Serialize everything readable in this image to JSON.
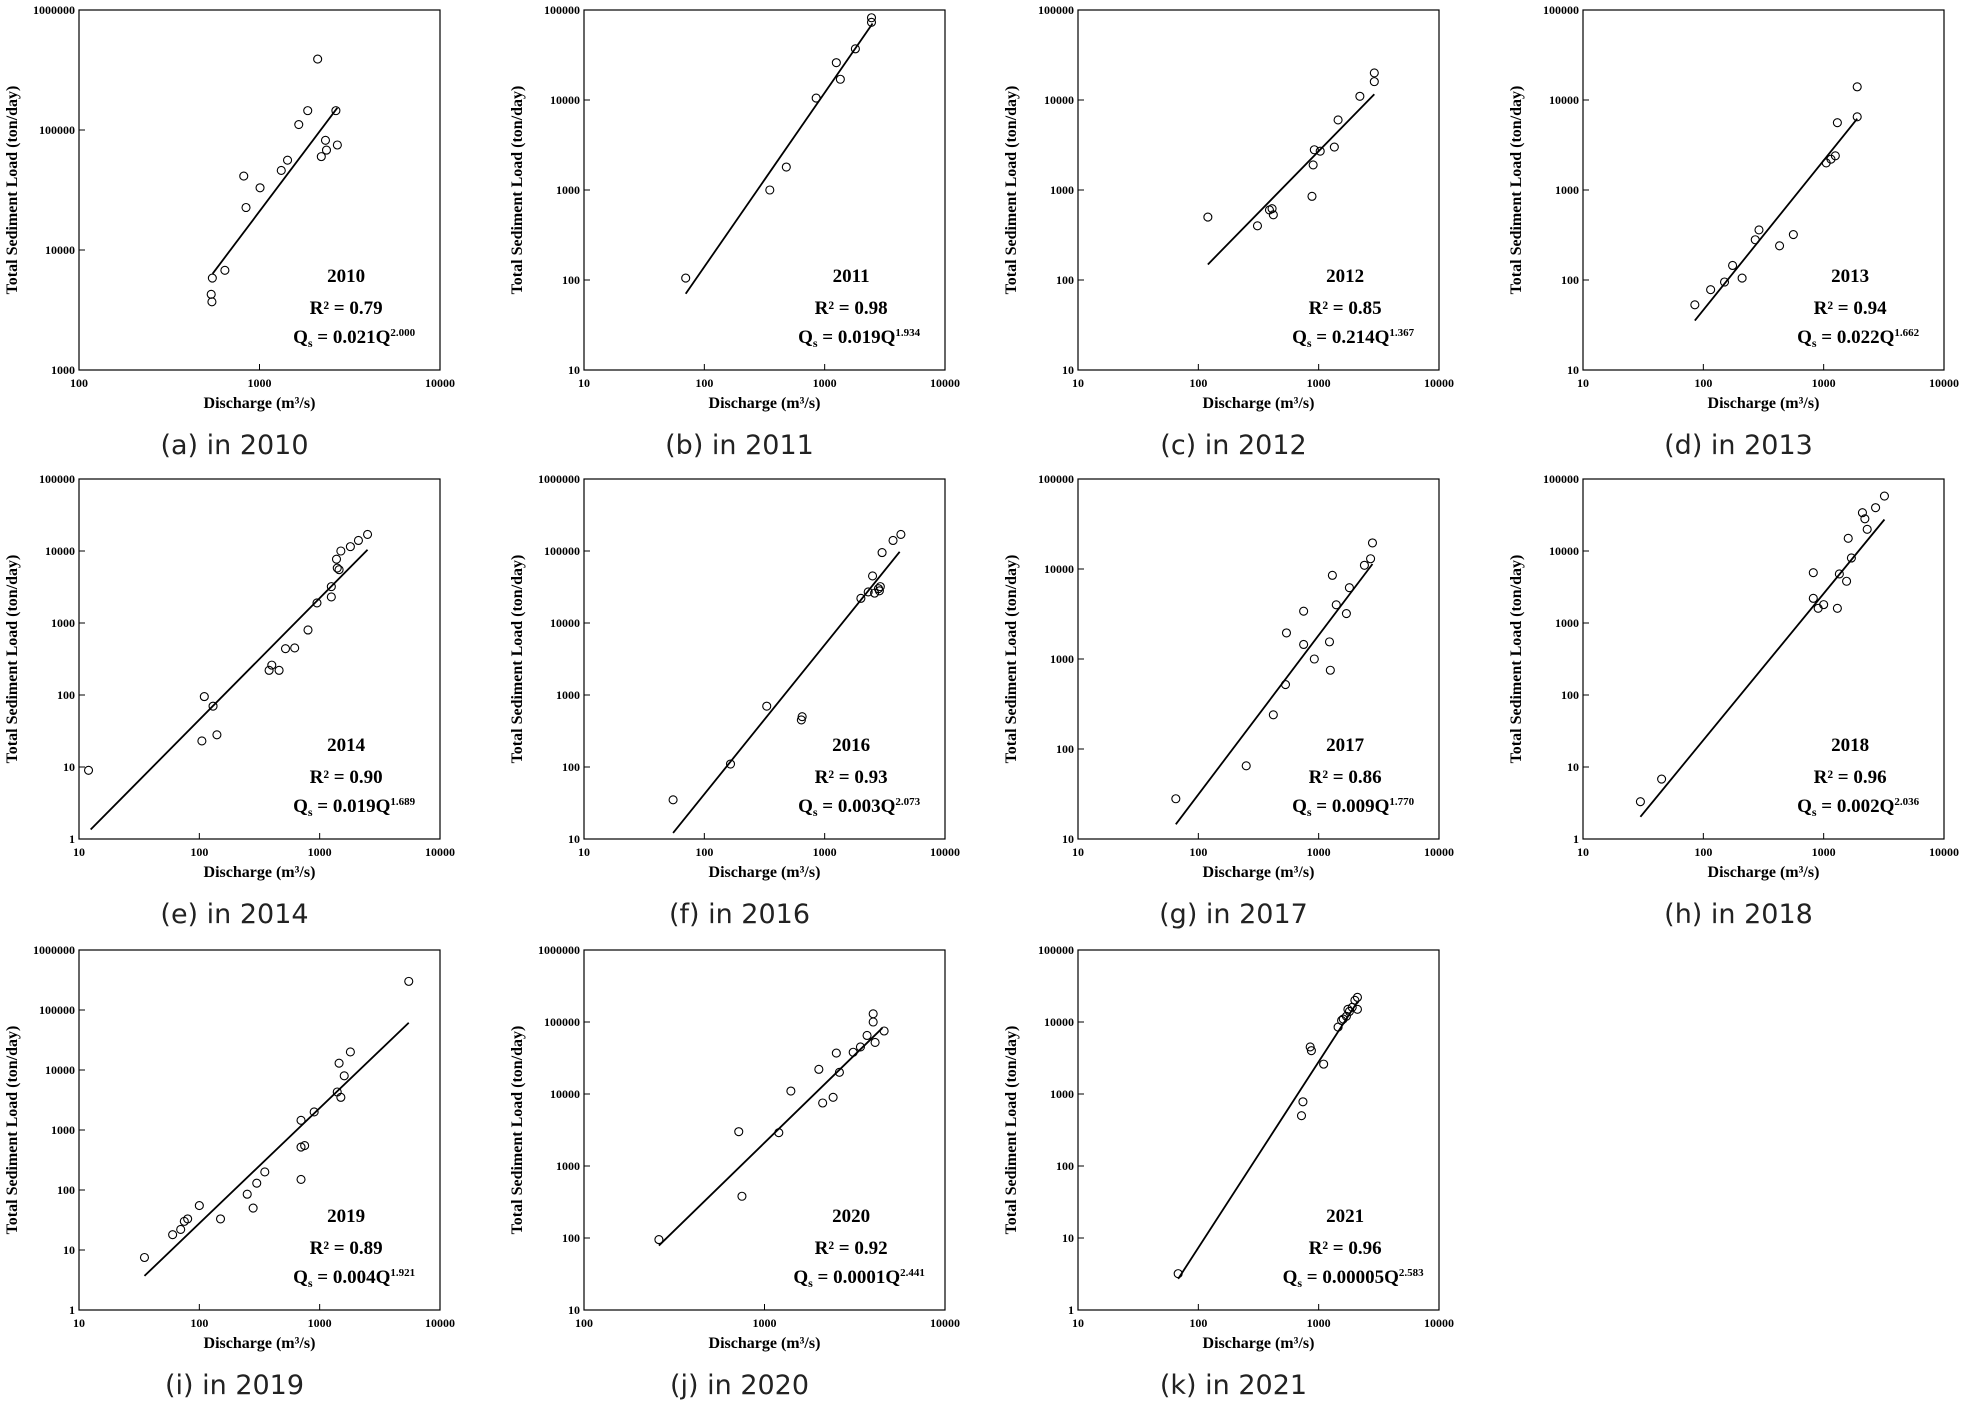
{
  "chart_data": [
    {
      "type": "scatter",
      "year": "2010",
      "r2_label": "R² = 0.79",
      "equation": {
        "lhs": "Q",
        "sub": "s",
        "text": " = 0.021Q",
        "exp": "2.000"
      },
      "caption": "(a) in 2010",
      "xlabel": "Discharge (m³/s)",
      "ylabel": "Total Sediment Load (ton/day)",
      "log_x": true,
      "log_y": true,
      "color": "#000000",
      "xlim": [
        100,
        10000
      ],
      "xticks": [
        100,
        1000,
        10000
      ],
      "ylim": [
        1000,
        1000000
      ],
      "yticks": [
        1000,
        10000,
        100000,
        1000000
      ],
      "x": [
        548,
        540,
        545,
        643,
        818,
        842,
        1007,
        1320,
        1430,
        1650,
        1850,
        2100,
        2200,
        2350,
        2320,
        2700,
        2650
      ],
      "values": [
        5840,
        4270,
        3700,
        6770,
        41300,
        22600,
        33000,
        46000,
        56000,
        111000,
        145000,
        390000,
        60000,
        68000,
        82000,
        75000,
        145000
      ],
      "fit": {
        "a": 0.021,
        "b": 2.0,
        "x": [
          550,
          2700
        ]
      }
    },
    {
      "type": "scatter",
      "year": "2011",
      "r2_label": "R² = 0.98",
      "equation": {
        "lhs": "Q",
        "sub": "s",
        "text": " = 0.019Q",
        "exp": "1.934"
      },
      "caption": "(b) in 2011",
      "xlabel": "Discharge (m³/s)",
      "ylabel": "Total Sediment Load (ton/day)",
      "log_x": true,
      "log_y": true,
      "color": "#000000",
      "xlim": [
        10,
        10000
      ],
      "xticks": [
        10,
        100,
        1000,
        10000
      ],
      "ylim": [
        10,
        100000
      ],
      "yticks": [
        10,
        100,
        1000,
        10000,
        100000
      ],
      "x": [
        70,
        350,
        480,
        850,
        1250,
        1350,
        1800,
        2450,
        2450
      ],
      "values": [
        105,
        1000,
        1800,
        10500,
        26000,
        17000,
        37000,
        82000,
        73000
      ],
      "fit": {
        "a": 0.019,
        "b": 1.934,
        "x": [
          70,
          2500
        ]
      }
    },
    {
      "type": "scatter",
      "year": "2012",
      "r2_label": "R² = 0.85",
      "equation": {
        "lhs": "Q",
        "sub": "s",
        "text": " = 0.214Q",
        "exp": "1.367"
      },
      "caption": "(c) in 2012",
      "xlabel": "Discharge (m³/s)",
      "ylabel": "Total Sediment Load (ton/day)",
      "log_x": true,
      "log_y": true,
      "color": "#000000",
      "xlim": [
        10,
        10000
      ],
      "xticks": [
        10,
        100,
        1000,
        10000
      ],
      "ylim": [
        10,
        100000
      ],
      "yticks": [
        10,
        100,
        1000,
        10000,
        100000
      ],
      "x": [
        120,
        310,
        390,
        410,
        420,
        880,
        900,
        920,
        1030,
        1350,
        1450,
        2200,
        2900,
        2900
      ],
      "values": [
        500,
        400,
        600,
        620,
        530,
        850,
        1900,
        2800,
        2700,
        3000,
        6000,
        11000,
        16000,
        20000
      ],
      "fit": {
        "a": 0.214,
        "b": 1.367,
        "x": [
          120,
          2900
        ]
      }
    },
    {
      "type": "scatter",
      "year": "2013",
      "r2_label": "R² = 0.94",
      "equation": {
        "lhs": "Q",
        "sub": "s",
        "text": " = 0.022Q",
        "exp": "1.662"
      },
      "caption": "(d) in 2013",
      "xlabel": "Discharge (m³/s)",
      "ylabel": "Total Sediment Load (ton/day)",
      "log_x": true,
      "log_y": true,
      "color": "#000000",
      "xlim": [
        10,
        10000
      ],
      "xticks": [
        10,
        100,
        1000,
        10000
      ],
      "ylim": [
        10,
        100000
      ],
      "yticks": [
        10,
        100,
        1000,
        10000,
        100000
      ],
      "x": [
        85,
        115,
        150,
        175,
        210,
        270,
        290,
        430,
        560,
        1050,
        1150,
        1250,
        1300,
        1900,
        1900
      ],
      "values": [
        53,
        78,
        95,
        145,
        105,
        280,
        360,
        240,
        320,
        2000,
        2200,
        2400,
        5600,
        6500,
        14000
      ],
      "fit": {
        "a": 0.022,
        "b": 1.662,
        "x": [
          85,
          1900
        ]
      }
    },
    {
      "type": "scatter",
      "year": "2014",
      "r2_label": "R² = 0.90",
      "equation": {
        "lhs": "Q",
        "sub": "s",
        "text": " = 0.019Q",
        "exp": "1.689"
      },
      "caption": "(e) in 2014",
      "xlabel": "Discharge (m³/s)",
      "ylabel": "Total Sediment Load (ton/day)",
      "log_x": true,
      "log_y": true,
      "color": "#000000",
      "xlim": [
        10,
        10000
      ],
      "xticks": [
        10,
        100,
        1000,
        10000
      ],
      "ylim": [
        1,
        100000
      ],
      "yticks": [
        1,
        10,
        100,
        1000,
        10000,
        100000
      ],
      "x": [
        12,
        105,
        110,
        130,
        140,
        380,
        400,
        460,
        520,
        620,
        800,
        950,
        1250,
        1250,
        1380,
        1400,
        1450,
        1500,
        1800,
        2100,
        2500
      ],
      "values": [
        9,
        23,
        95,
        70,
        28,
        220,
        260,
        220,
        440,
        450,
        800,
        1900,
        2300,
        3200,
        7700,
        5800,
        5500,
        10000,
        11500,
        14000,
        17000
      ],
      "fit": {
        "a": 0.019,
        "b": 1.689,
        "x": [
          12.5,
          2500
        ]
      }
    },
    {
      "type": "scatter",
      "year": "2016",
      "r2_label": "R² = 0.93",
      "equation": {
        "lhs": "Q",
        "sub": "s",
        "text": " = 0.003Q",
        "exp": "2.073"
      },
      "caption": "(f) in 2016",
      "xlabel": "Discharge (m³/s)",
      "ylabel": "Total Sediment Load (ton/day)",
      "log_x": true,
      "log_y": true,
      "color": "#000000",
      "xlim": [
        10,
        10000
      ],
      "xticks": [
        10,
        100,
        1000,
        10000
      ],
      "ylim": [
        10,
        1000000
      ],
      "yticks": [
        10,
        100,
        1000,
        10000,
        100000,
        1000000
      ],
      "x": [
        55,
        165,
        330,
        640,
        650,
        2000,
        2300,
        2500,
        2600,
        2800,
        2850,
        2900,
        3000,
        3700,
        4300
      ],
      "values": [
        35,
        110,
        700,
        450,
        500,
        22000,
        27000,
        45000,
        26000,
        30000,
        28000,
        32000,
        95000,
        140000,
        170000
      ],
      "fit": {
        "a": 0.003,
        "b": 2.073,
        "x": [
          55,
          4200
        ]
      }
    },
    {
      "type": "scatter",
      "year": "2017",
      "r2_label": "R² = 0.86",
      "equation": {
        "lhs": "Q",
        "sub": "s",
        "text": " = 0.009Q",
        "exp": "1.770"
      },
      "caption": "(g) in 2017",
      "xlabel": "Discharge (m³/s)",
      "ylabel": "Total Sediment Load (ton/day)",
      "log_x": true,
      "log_y": true,
      "color": "#000000",
      "xlim": [
        10,
        10000
      ],
      "xticks": [
        10,
        100,
        1000,
        10000
      ],
      "ylim": [
        10,
        100000
      ],
      "yticks": [
        10,
        100,
        1000,
        10000,
        100000
      ],
      "x": [
        65,
        250,
        420,
        530,
        540,
        750,
        750,
        920,
        1230,
        1250,
        1300,
        1400,
        1700,
        1800,
        2400,
        2700,
        2800
      ],
      "values": [
        28,
        65,
        240,
        520,
        1950,
        1450,
        3400,
        1000,
        1550,
        750,
        8500,
        4000,
        3200,
        6200,
        11000,
        13000,
        19500
      ],
      "fit": {
        "a": 0.009,
        "b": 1.77,
        "x": [
          65,
          2800
        ]
      }
    },
    {
      "type": "scatter",
      "year": "2018",
      "r2_label": "R² = 0.96",
      "equation": {
        "lhs": "Q",
        "sub": "s",
        "text": " = 0.002Q",
        "exp": "2.036"
      },
      "caption": "(h) in 2018",
      "xlabel": "Discharge (m³/s)",
      "ylabel": "Total Sediment Load (ton/day)",
      "log_x": true,
      "log_y": true,
      "color": "#000000",
      "xlim": [
        10,
        10000
      ],
      "xticks": [
        10,
        100,
        1000,
        10000
      ],
      "ylim": [
        1,
        100000
      ],
      "yticks": [
        1,
        10,
        100,
        1000,
        10000,
        100000
      ],
      "x": [
        30,
        45,
        820,
        820,
        900,
        1000,
        1300,
        1350,
        1550,
        1600,
        1700,
        2100,
        2200,
        2300,
        2700,
        3200
      ],
      "values": [
        3.3,
        6.8,
        5000,
        2200,
        1600,
        1800,
        1600,
        4800,
        3800,
        15000,
        8000,
        34000,
        28000,
        20000,
        40000,
        58000
      ],
      "fit": {
        "a": 0.002,
        "b": 2.036,
        "x": [
          30,
          3200
        ]
      }
    },
    {
      "type": "scatter",
      "year": "2019",
      "r2_label": "R² = 0.89",
      "equation": {
        "lhs": "Q",
        "sub": "s",
        "text": " = 0.004Q",
        "exp": "1.921"
      },
      "caption": "(i) in 2019",
      "xlabel": "Discharge (m³/s)",
      "ylabel": "Total Sediment Load (ton/day)",
      "log_x": true,
      "log_y": true,
      "color": "#000000",
      "xlim": [
        10,
        10000
      ],
      "xticks": [
        10,
        100,
        1000,
        10000
      ],
      "ylim": [
        1,
        1000000
      ],
      "yticks": [
        1,
        10,
        100,
        1000,
        10000,
        100000,
        1000000
      ],
      "x": [
        35,
        60,
        70,
        75,
        80,
        100,
        150,
        250,
        280,
        300,
        350,
        700,
        700,
        700,
        750,
        900,
        1400,
        1450,
        1500,
        1600,
        1800,
        5500
      ],
      "values": [
        7.5,
        18,
        22,
        30,
        33,
        55,
        33,
        85,
        50,
        130,
        200,
        150,
        520,
        1450,
        550,
        2000,
        4300,
        13000,
        3500,
        8000,
        20000,
        300000
      ],
      "fit": {
        "a": 0.004,
        "b": 1.921,
        "x": [
          35,
          5500
        ]
      }
    },
    {
      "type": "scatter",
      "year": "2020",
      "r2_label": "R² = 0.92",
      "equation": {
        "lhs": "Q",
        "sub": "s",
        "text": " = 0.0001Q",
        "exp": "2.441"
      },
      "caption": "(j) in 2020",
      "xlabel": "Discharge (m³/s)",
      "ylabel": "Total Sediment Load (ton/day)",
      "log_x": true,
      "log_y": true,
      "color": "#000000",
      "xlim": [
        100,
        10000
      ],
      "xticks": [
        100,
        1000,
        10000
      ],
      "ylim": [
        10,
        1000000
      ],
      "yticks": [
        10,
        100,
        1000,
        10000,
        100000,
        1000000
      ],
      "x": [
        260,
        720,
        750,
        1200,
        1400,
        2000,
        2100,
        2400,
        2500,
        2600,
        3100,
        3400,
        3700,
        4000,
        4000,
        4100,
        4600
      ],
      "values": [
        95,
        3000,
        380,
        2900,
        11000,
        22000,
        7500,
        9000,
        37000,
        20000,
        38000,
        45000,
        65000,
        100000,
        130000,
        52000,
        75000
      ],
      "fit": {
        "a": 0.0001,
        "b": 2.441,
        "x": [
          260,
          4500
        ]
      }
    },
    {
      "type": "scatter",
      "year": "2021",
      "r2_label": "R² = 0.96",
      "equation": {
        "lhs": "Q",
        "sub": "s",
        "text": " = 0.00005Q",
        "exp": "2.583"
      },
      "caption": "(k) in 2021",
      "xlabel": "Discharge (m³/s)",
      "ylabel": "Total Sediment Load (ton/day)",
      "log_x": true,
      "log_y": true,
      "color": "#000000",
      "xlim": [
        10,
        10000
      ],
      "xticks": [
        10,
        100,
        1000,
        10000
      ],
      "ylim": [
        1,
        100000
      ],
      "yticks": [
        1,
        10,
        100,
        1000,
        10000,
        100000
      ],
      "x": [
        68,
        720,
        740,
        850,
        870,
        1100,
        1450,
        1550,
        1600,
        1700,
        1750,
        1800,
        1900,
        2000,
        2100,
        2100
      ],
      "values": [
        3.2,
        500,
        780,
        4500,
        4000,
        2600,
        8500,
        10500,
        11000,
        12000,
        15000,
        14000,
        16000,
        20000,
        22000,
        15000
      ],
      "fit": {
        "a": 5e-05,
        "b": 2.583,
        "x": [
          68,
          2100
        ]
      }
    }
  ]
}
